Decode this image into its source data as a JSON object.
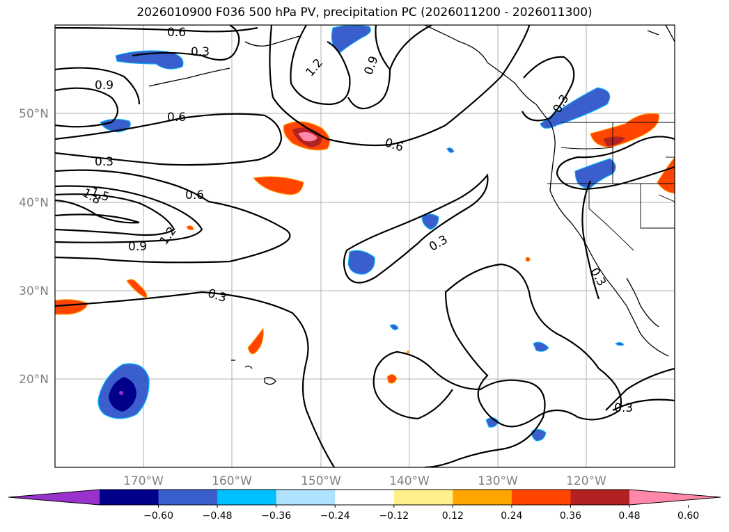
{
  "title": "2026010900 F036 500 hPa PV, precipitation PC (2026011200 - 2026011300)",
  "map": {
    "lon_range": [
      -180,
      -110
    ],
    "lat_range": [
      10,
      60
    ],
    "lon_ticks": [
      "170°W",
      "160°W",
      "150°W",
      "140°W",
      "130°W",
      "120°W"
    ],
    "lat_ticks": [
      "50°N",
      "40°N",
      "30°N",
      "20°N"
    ],
    "contour_labels": [
      "0.6",
      "0.3",
      "1.2",
      "0.9",
      "0.9",
      "0.6",
      "0.6",
      "0.3",
      "0.3",
      "1.5",
      "1.8",
      "0.6",
      "1.2",
      "0.9",
      "0.3",
      "0.3",
      "0.3",
      "0.3"
    ]
  },
  "colorbar": {
    "ticks": [
      "−0.60",
      "−0.48",
      "−0.36",
      "−0.24",
      "−0.12",
      "0.12",
      "0.24",
      "0.36",
      "0.48",
      "0.60"
    ],
    "colors": [
      "#9932cc",
      "#00008b",
      "#3a5fcd",
      "#00bfff",
      "#b0e2ff",
      "#ffffff",
      "#fff08c",
      "#ffa500",
      "#ff4500",
      "#b22222",
      "#ff88aa"
    ]
  }
}
